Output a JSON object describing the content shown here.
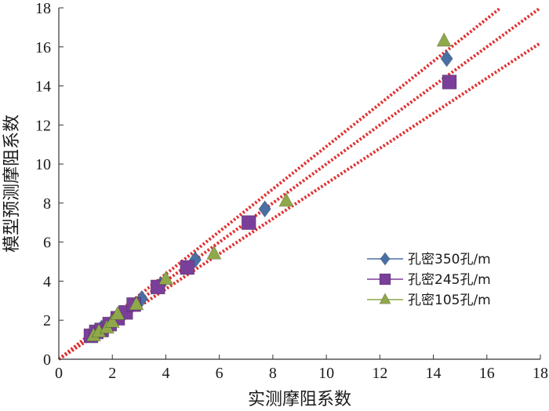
{
  "chart_data": {
    "type": "scatter",
    "title": "",
    "xlabel": "实测摩阻系数",
    "ylabel": "模型预测摩阻系数",
    "xlim": [
      0,
      18
    ],
    "ylim": [
      0,
      18
    ],
    "x_ticks": [
      "0",
      "2",
      "4",
      "6",
      "8",
      "10",
      "12",
      "14",
      "16",
      "18"
    ],
    "y_ticks": [
      "0",
      "2",
      "4",
      "6",
      "8",
      "10",
      "12",
      "14",
      "16",
      "18"
    ],
    "grid": false,
    "legend_position": "bottom-right",
    "series": [
      {
        "name": "孔密350孔/m",
        "marker": "diamond",
        "color": "#4a6fa5",
        "points": [
          [
            1.3,
            1.3
          ],
          [
            1.6,
            1.6
          ],
          [
            2.0,
            1.9
          ],
          [
            2.4,
            2.3
          ],
          [
            3.1,
            3.1
          ],
          [
            3.8,
            3.8
          ],
          [
            5.1,
            5.1
          ],
          [
            7.7,
            7.7
          ],
          [
            14.5,
            15.4
          ]
        ]
      },
      {
        "name": "孔密245孔/m",
        "marker": "square",
        "color": "#7a3f9a",
        "points": [
          [
            1.2,
            1.2
          ],
          [
            1.4,
            1.4
          ],
          [
            1.6,
            1.5
          ],
          [
            1.9,
            1.8
          ],
          [
            2.2,
            2.1
          ],
          [
            2.5,
            2.4
          ],
          [
            2.8,
            2.8
          ],
          [
            3.7,
            3.7
          ],
          [
            4.8,
            4.7
          ],
          [
            7.1,
            7.0
          ],
          [
            14.6,
            14.2
          ]
        ]
      },
      {
        "name": "孔密105孔/m",
        "marker": "triangle",
        "color": "#8fa84a",
        "points": [
          [
            1.3,
            1.2
          ],
          [
            1.5,
            1.4
          ],
          [
            1.8,
            1.6
          ],
          [
            2.0,
            1.9
          ],
          [
            2.2,
            2.3
          ],
          [
            2.9,
            2.8
          ],
          [
            4.0,
            4.1
          ],
          [
            5.8,
            5.4
          ],
          [
            8.5,
            8.1
          ],
          [
            14.4,
            16.3
          ]
        ]
      }
    ],
    "reference_lines": [
      {
        "slope": 1.09,
        "intercept": 0,
        "style": "dotted",
        "color": "#e03030"
      },
      {
        "slope": 1.0,
        "intercept": 0,
        "style": "dotted",
        "color": "#e03030"
      },
      {
        "slope": 0.9,
        "intercept": 0,
        "style": "dotted",
        "color": "#e03030"
      }
    ]
  }
}
